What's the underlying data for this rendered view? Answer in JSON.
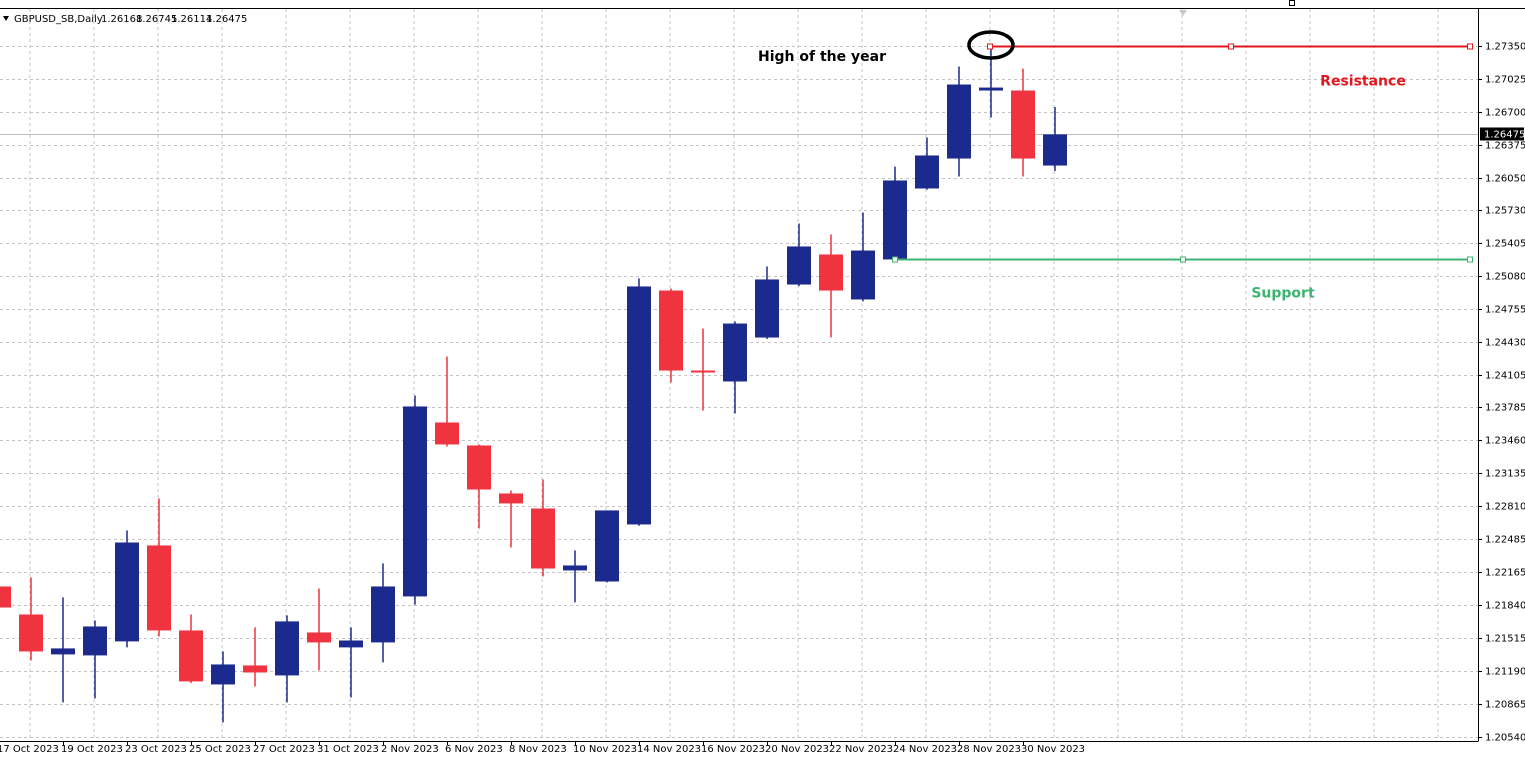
{
  "chart_data": {
    "type": "candlestick",
    "symbol": "GBPUSD_SB,Daily",
    "categories": [
      "17 Oct 2023",
      null,
      "19 Oct 2023",
      null,
      "23 Oct 2023",
      null,
      "25 Oct 2023",
      null,
      "27 Oct 2023",
      null,
      "31 Oct 2023",
      null,
      "2 Nov 2023",
      null,
      "6 Nov 2023",
      null,
      "8 Nov 2023",
      null,
      "10 Nov 2023",
      null,
      "14 Nov 2023",
      null,
      "16 Nov 2023",
      null,
      "20 Nov 2023",
      null,
      "22 Nov 2023",
      null,
      "24 Nov 2023",
      null,
      "28 Nov 2023",
      null,
      "30 Nov 2023",
      null
    ],
    "open": [
      1.22022,
      1.21746,
      1.21353,
      1.21343,
      1.21481,
      1.22426,
      1.21589,
      1.21057,
      1.21244,
      1.21146,
      1.21569,
      1.21422,
      1.21471,
      1.21924,
      1.23637,
      1.23411,
      1.22938,
      1.2279,
      1.2218,
      1.22071,
      1.22633,
      1.24937,
      1.24149,
      1.24041,
      1.24474,
      1.24996,
      1.25292,
      1.24849,
      1.25243,
      1.25942,
      1.26237,
      1.26907,
      1.26907,
      1.26168
    ],
    "high": [
      1.22081,
      1.22111,
      1.21914,
      1.21687,
      1.22574,
      1.22889,
      1.21746,
      1.21382,
      1.21619,
      1.21737,
      1.22002,
      1.21619,
      1.22249,
      1.23903,
      1.24287,
      1.23421,
      1.22968,
      1.23076,
      1.22377,
      1.22771,
      1.25055,
      1.24957,
      1.24563,
      1.24632,
      1.25174,
      1.25597,
      1.25489,
      1.25705,
      1.26158,
      1.26444,
      1.27143,
      1.2735,
      1.27123,
      1.26745
    ],
    "low": [
      1.21766,
      1.21293,
      1.2088,
      1.20919,
      1.21422,
      1.2153,
      1.2107,
      1.20683,
      1.21037,
      1.2088,
      1.21195,
      1.20929,
      1.21274,
      1.21845,
      1.23401,
      1.22593,
      1.22406,
      1.22121,
      1.21865,
      1.22062,
      1.2262,
      1.24031,
      1.23755,
      1.23726,
      1.2446,
      1.2498,
      1.24474,
      1.2483,
      1.2523,
      1.2593,
      1.2606,
      1.26641,
      1.2606,
      1.26114
    ],
    "close": [
      1.21815,
      1.21382,
      1.21412,
      1.21628,
      1.22455,
      1.21589,
      1.21087,
      1.21254,
      1.21175,
      1.21678,
      1.21471,
      1.2149,
      1.22022,
      1.23795,
      1.23421,
      1.22977,
      1.2284,
      1.22199,
      1.22229,
      1.22771,
      1.24977,
      1.24149,
      1.2413,
      1.24612,
      1.25046,
      1.25371,
      1.24937,
      1.25331,
      1.26021,
      1.26267,
      1.26966,
      1.26936,
      1.26237,
      1.26475
    ],
    "up_color": "#1b2a8c",
    "down_color": "#ef3340",
    "ylim": [
      1.205,
      1.277
    ],
    "yticks": [
      {
        "value": 1.2054,
        "label": "1.20540"
      },
      {
        "value": 1.20865,
        "label": "1.20865"
      },
      {
        "value": 1.2119,
        "label": "1.21190"
      },
      {
        "value": 1.21515,
        "label": "1.21515"
      },
      {
        "value": 1.2184,
        "label": "1.21840"
      },
      {
        "value": 1.22165,
        "label": "1.22165"
      },
      {
        "value": 1.22485,
        "label": "1.22485"
      },
      {
        "value": 1.2281,
        "label": "1.22810"
      },
      {
        "value": 1.23135,
        "label": "1.23135"
      },
      {
        "value": 1.2346,
        "label": "1.23460"
      },
      {
        "value": 1.23785,
        "label": "1.23785"
      },
      {
        "value": 1.24105,
        "label": "1.24105"
      },
      {
        "value": 1.2443,
        "label": "1.24430"
      },
      {
        "value": 1.24755,
        "label": "1.24755"
      },
      {
        "value": 1.2508,
        "label": "1.25080"
      },
      {
        "value": 1.25405,
        "label": "1.25405"
      },
      {
        "value": 1.2573,
        "label": "1.25730"
      },
      {
        "value": 1.2605,
        "label": "1.26050"
      },
      {
        "value": 1.26375,
        "label": "1.26375"
      },
      {
        "value": 1.267,
        "label": "1.26700"
      },
      {
        "value": 1.27025,
        "label": "1.27025"
      },
      {
        "value": 1.2735,
        "label": "1.27350"
      }
    ],
    "grid": true,
    "annotation": "High of the year",
    "resistance": {
      "label": "Resistance",
      "value": 1.2735,
      "color": "#e3161c"
    },
    "support": {
      "label": "Support",
      "value": 1.25243,
      "color": "#3cb371"
    }
  }
}
